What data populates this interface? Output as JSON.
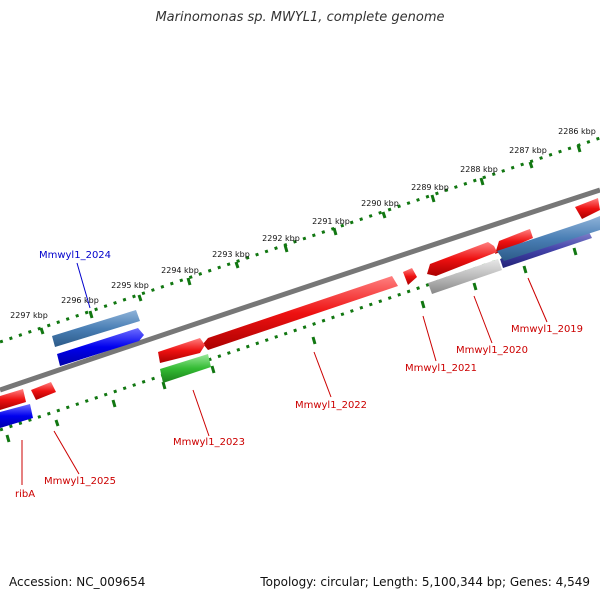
{
  "title": "Marinomonas sp. MWYL1, complete genome",
  "footer": {
    "accession": "Accession: NC_009654",
    "summary": "Topology: circular; Length: 5,100,344 bp; Genes: 4,549"
  },
  "axis_ticks": [
    "2286 kbp",
    "2287 kbp",
    "2288 kbp",
    "2289 kbp",
    "2290 kbp",
    "2291 kbp",
    "2292 kbp",
    "2293 kbp",
    "2294 kbp",
    "2295 kbp",
    "2296 kbp",
    "2297 kbp"
  ],
  "genes": [
    "Mmwyl1_2024",
    "Mmwyl1_2019",
    "Mmwyl1_2020",
    "Mmwyl1_2021",
    "Mmwyl1_2022",
    "Mmwyl1_2023",
    "Mmwyl1_2025",
    "ribA"
  ],
  "colors": {
    "plus_strand_label": "#0000cc",
    "minus_strand_label": "#cc0000",
    "cds_red": "#ee1111",
    "cds_blue": "#0000ee",
    "cds_steel": "#4477aa",
    "cds_green": "#33bb33",
    "cds_gray": "#bbbbbb",
    "backbone": "#777777",
    "ticks": "#117711"
  }
}
